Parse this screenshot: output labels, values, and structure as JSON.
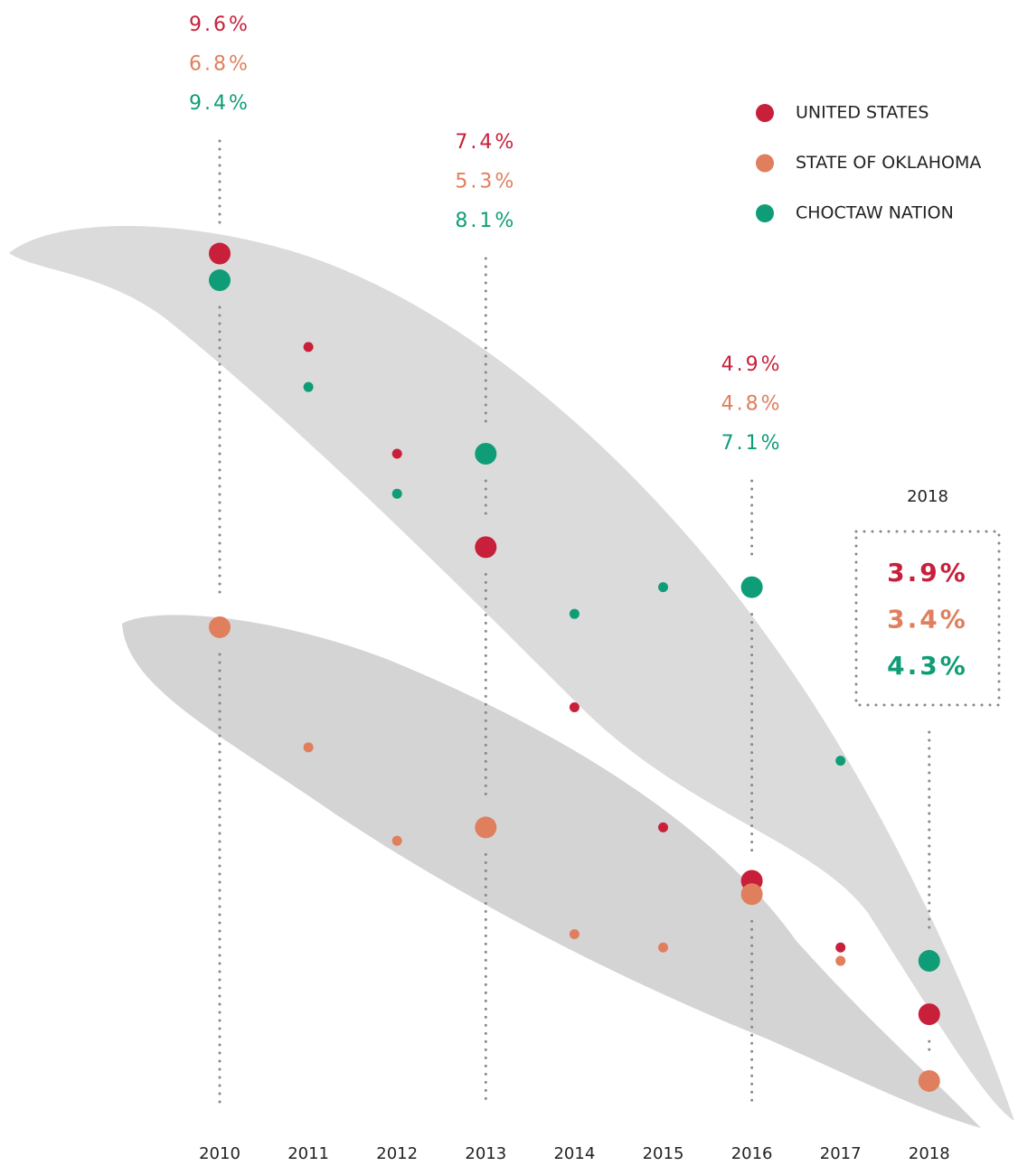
{
  "chart_data": {
    "type": "dot",
    "categories": [
      "2010",
      "2011",
      "2012",
      "2013",
      "2014",
      "2015",
      "2016",
      "2017",
      "2018"
    ],
    "series": [
      {
        "name": "UNITED STATES",
        "color": "#c8203a",
        "values": [
          9.6,
          8.9,
          8.1,
          7.4,
          6.2,
          5.3,
          4.9,
          4.4,
          3.9
        ],
        "value_labels": [
          "9.6%",
          null,
          null,
          "7.4%",
          null,
          null,
          "4.9%",
          null,
          "3.9%"
        ]
      },
      {
        "name": "STATE OF OKLAHOMA",
        "color": "#e07f5e",
        "values": [
          6.8,
          5.9,
          5.2,
          5.3,
          4.5,
          4.4,
          4.8,
          4.3,
          3.4
        ],
        "value_labels": [
          "6.8%",
          null,
          null,
          "5.3%",
          null,
          null,
          "4.8%",
          null,
          "3.4%"
        ]
      },
      {
        "name": "CHOCTAW NATION",
        "color": "#0f9d77",
        "values": [
          9.4,
          8.6,
          7.8,
          8.1,
          6.9,
          7.1,
          7.1,
          5.8,
          4.3
        ],
        "value_labels": [
          "9.4%",
          null,
          null,
          "8.1%",
          null,
          null,
          "7.1%",
          null,
          "4.3%"
        ]
      }
    ],
    "ylim": [
      3,
      11.5
    ],
    "legend": "top-right"
  }
}
